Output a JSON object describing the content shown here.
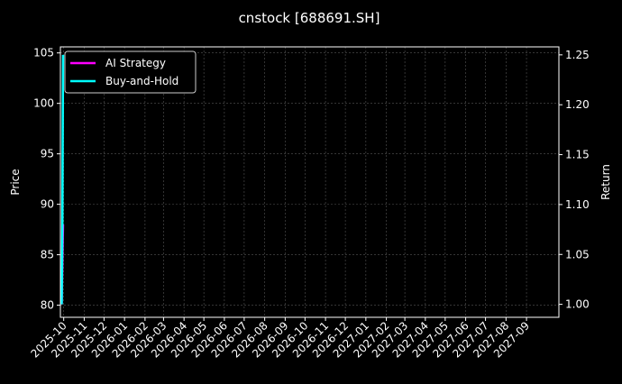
{
  "chart_data": {
    "type": "line",
    "title": "cnstock [688691.SH]",
    "ylabel_left": "Price",
    "ylabel_right": "Return",
    "ylim_left": [
      78.8,
      105.6
    ],
    "ylim_right": [
      0.987,
      1.258
    ],
    "xlim": [
      "2025-09-26",
      "2027-10-20"
    ],
    "grid": true,
    "legend_placement": "top-left",
    "left_ticks": [
      80,
      85,
      90,
      95,
      100,
      105
    ],
    "right_ticks": [
      "1.00",
      "1.05",
      "1.10",
      "1.15",
      "1.20",
      "1.25"
    ],
    "x_ticks": [
      "2025-10",
      "2025-11",
      "2025-12",
      "2026-01",
      "2026-02",
      "2026-03",
      "2026-04",
      "2026-05",
      "2026-06",
      "2026-07",
      "2026-08",
      "2026-09",
      "2026-10",
      "2026-11",
      "2026-12",
      "2027-01",
      "2027-02",
      "2027-03",
      "2027-04",
      "2027-05",
      "2027-06",
      "2027-07",
      "2027-08",
      "2027-09"
    ],
    "series": [
      {
        "name": "AI Strategy",
        "axis": "right",
        "color": "#ff00ff",
        "x": [
          "2025-09-28",
          "2025-09-29",
          "2025-09-30"
        ],
        "y": [
          1.0,
          1.045,
          1.08
        ]
      },
      {
        "name": "Buy-and-Hold",
        "axis": "right",
        "color": "#00ffff",
        "x": [
          "2025-09-28",
          "2025-09-29",
          "2025-09-30"
        ],
        "y": [
          1.0,
          1.08,
          1.25
        ]
      }
    ]
  }
}
